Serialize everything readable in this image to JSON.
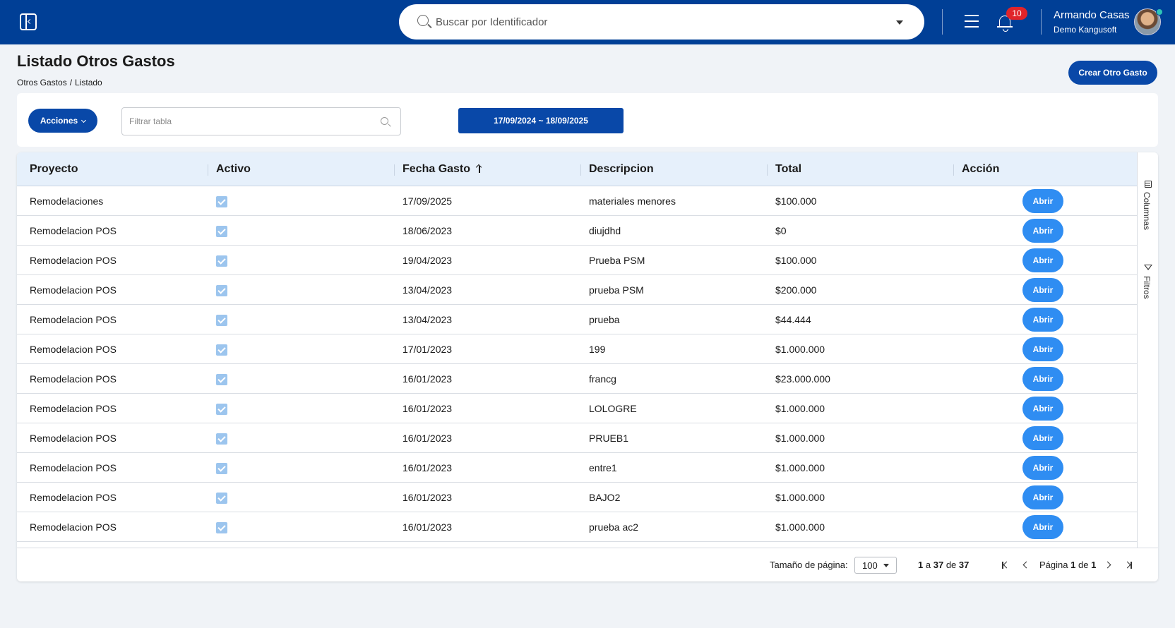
{
  "topbar": {
    "search_placeholder": "Buscar por Identificador",
    "notifications_count": "10",
    "user_name": "Armando Casas",
    "company": "Demo Kangusoft"
  },
  "header": {
    "title": "Listado Otros Gastos",
    "breadcrumb": [
      "Otros Gastos",
      "Listado"
    ],
    "create_label": "Crear Otro Gasto"
  },
  "filters": {
    "actions_label": "Acciones",
    "filter_placeholder": "Filtrar tabla",
    "date_range": "17/09/2024 ~ 18/09/2025"
  },
  "table": {
    "columns": [
      "Proyecto",
      "Activo",
      "Fecha Gasto",
      "Descripcion",
      "Total",
      "Acción"
    ],
    "action_label": "Abrir",
    "rows": [
      {
        "proyecto": "Remodelaciones",
        "fecha": "17/09/2025",
        "descripcion": "materiales menores",
        "total": "$100.000"
      },
      {
        "proyecto": "Remodelacion POS",
        "fecha": "18/06/2023",
        "descripcion": "diujdhd",
        "total": "$0"
      },
      {
        "proyecto": "Remodelacion POS",
        "fecha": "19/04/2023",
        "descripcion": "Prueba PSM",
        "total": "$100.000"
      },
      {
        "proyecto": "Remodelacion POS",
        "fecha": "13/04/2023",
        "descripcion": "prueba PSM",
        "total": "$200.000"
      },
      {
        "proyecto": "Remodelacion POS",
        "fecha": "13/04/2023",
        "descripcion": "prueba",
        "total": "$44.444"
      },
      {
        "proyecto": "Remodelacion POS",
        "fecha": "17/01/2023",
        "descripcion": "199",
        "total": "$1.000.000"
      },
      {
        "proyecto": "Remodelacion POS",
        "fecha": "16/01/2023",
        "descripcion": "francg",
        "total": "$23.000.000"
      },
      {
        "proyecto": "Remodelacion POS",
        "fecha": "16/01/2023",
        "descripcion": "LOLOGRE",
        "total": "$1.000.000"
      },
      {
        "proyecto": "Remodelacion POS",
        "fecha": "16/01/2023",
        "descripcion": "PRUEB1",
        "total": "$1.000.000"
      },
      {
        "proyecto": "Remodelacion POS",
        "fecha": "16/01/2023",
        "descripcion": "entre1",
        "total": "$1.000.000"
      },
      {
        "proyecto": "Remodelacion POS",
        "fecha": "16/01/2023",
        "descripcion": "BAJO2",
        "total": "$1.000.000"
      },
      {
        "proyecto": "Remodelacion POS",
        "fecha": "16/01/2023",
        "descripcion": "prueba ac2",
        "total": "$1.000.000"
      }
    ]
  },
  "side_panel": {
    "columns_label": "Columnas",
    "filters_label": "Filtros"
  },
  "footer": {
    "page_size_label": "Tamaño de página:",
    "page_size": "100",
    "range_from": "1",
    "range_sep": "a",
    "range_to": "37",
    "range_of": "de",
    "total": "37",
    "page_label": "Página",
    "page_current": "1",
    "page_of": "de",
    "page_total": "1"
  }
}
